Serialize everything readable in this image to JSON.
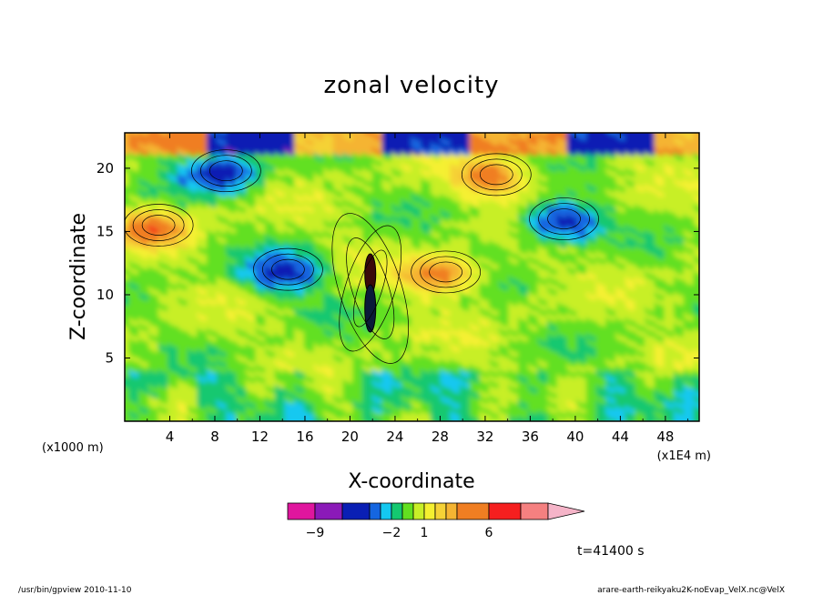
{
  "chart_data": {
    "type": "heatmap",
    "title": "zonal velocity",
    "xlabel": "X-coordinate",
    "ylabel": "Z-coordinate",
    "x_unit_left": "(x1000 m)",
    "x_unit_right": "(x1E4 m)",
    "xlim": [
      0,
      51
    ],
    "ylim": [
      0,
      22.8
    ],
    "x_ticks": [
      4,
      8,
      12,
      16,
      20,
      24,
      28,
      32,
      36,
      40,
      44,
      48
    ],
    "x_tick_labels": [
      "4",
      "8",
      "12",
      "16",
      "20",
      "24",
      "28",
      "32",
      "36",
      "40",
      "44",
      "48"
    ],
    "y_ticks": [
      5,
      10,
      15,
      20
    ],
    "y_tick_labels": [
      "5",
      "10",
      "15",
      "20"
    ],
    "colorbar": {
      "levels": [
        -11,
        -9,
        -7,
        -5,
        -3,
        -2,
        -1,
        0,
        1,
        2,
        3,
        4,
        6,
        8,
        10
      ],
      "colors": [
        "#e0169e",
        "#8b1ab8",
        "#0a1fb4",
        "#1566e0",
        "#14c8f0",
        "#14c870",
        "#62e020",
        "#c8ef28",
        "#f5f030",
        "#f5d236",
        "#f5b432",
        "#f07e22",
        "#f51f1f",
        "#f58080",
        "#f5b4c8"
      ],
      "labels": [
        {
          "value": -9,
          "text": "−9"
        },
        {
          "value": -2,
          "text": "−2"
        },
        {
          "value": 1,
          "text": "1"
        },
        {
          "value": 6,
          "text": "6"
        }
      ]
    },
    "features": [
      {
        "x": 21.8,
        "z": 10.5,
        "kind": "strong-dipole",
        "sign": "mixed"
      },
      {
        "x": 14.5,
        "z": 12.0,
        "kind": "negative-lobe",
        "value": -6
      },
      {
        "x": 28.5,
        "z": 11.8,
        "kind": "positive-lobe",
        "value": 5
      },
      {
        "x": 3.0,
        "z": 15.5,
        "kind": "positive-lobe",
        "value": 5
      },
      {
        "x": 39.0,
        "z": 16.0,
        "kind": "negative-lobe",
        "value": -6
      },
      {
        "x": 9.0,
        "z": 19.8,
        "kind": "negative-lobe",
        "value": -6
      },
      {
        "x": 33.0,
        "z": 19.5,
        "kind": "positive-lobe",
        "value": 5
      }
    ]
  },
  "annotations": {
    "time": "t=41400 s",
    "footer_left": "/usr/bin/gpview  2010-11-10",
    "footer_right": "arare-earth-reikyaku2K-noEvap_VelX.nc@VelX"
  }
}
